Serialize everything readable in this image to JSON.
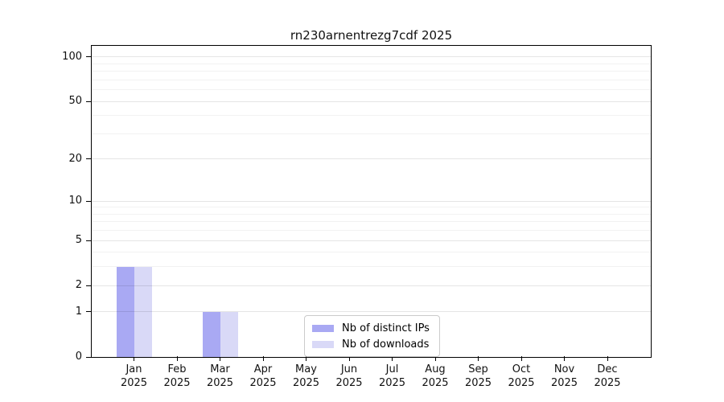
{
  "chart_data": {
    "type": "bar",
    "title": "rn230arnentrezg7cdf 2025",
    "categories": [
      "Jan 2025",
      "Feb 2025",
      "Mar 2025",
      "Apr 2025",
      "May 2025",
      "Jun 2025",
      "Jul 2025",
      "Aug 2025",
      "Sep 2025",
      "Oct 2025",
      "Nov 2025",
      "Dec 2025"
    ],
    "month_labels": [
      "Jan",
      "Feb",
      "Mar",
      "Apr",
      "May",
      "Jun",
      "Jul",
      "Aug",
      "Sep",
      "Oct",
      "Nov",
      "Dec"
    ],
    "year_label": "2025",
    "series": [
      {
        "name": "Nb of distinct IPs",
        "color": "#a9a9f3",
        "values": [
          3,
          0,
          1,
          0,
          0,
          0,
          0,
          0,
          0,
          0,
          0,
          0
        ]
      },
      {
        "name": "Nb of downloads",
        "color": "#d9d9f7",
        "values": [
          3,
          0,
          1,
          0,
          0,
          0,
          0,
          0,
          0,
          0,
          0,
          0
        ]
      }
    ],
    "xlabel": "",
    "ylabel": "",
    "yscale": "log1p",
    "ylim": [
      0,
      119
    ],
    "yticks_major": [
      0,
      1,
      2,
      5,
      10,
      20,
      50,
      100
    ],
    "yticks_minor": [
      3,
      4,
      6,
      7,
      8,
      9,
      30,
      40,
      60,
      70,
      80,
      90
    ],
    "grid": true,
    "legend_position": "lower center",
    "colors": {
      "background": "#ffffff",
      "spine": "#000000",
      "grid_major": "rgba(0,0,0,0.10)",
      "grid_minor": "rgba(0,0,0,0.05)",
      "legend_border": "#cbcbcb"
    }
  }
}
